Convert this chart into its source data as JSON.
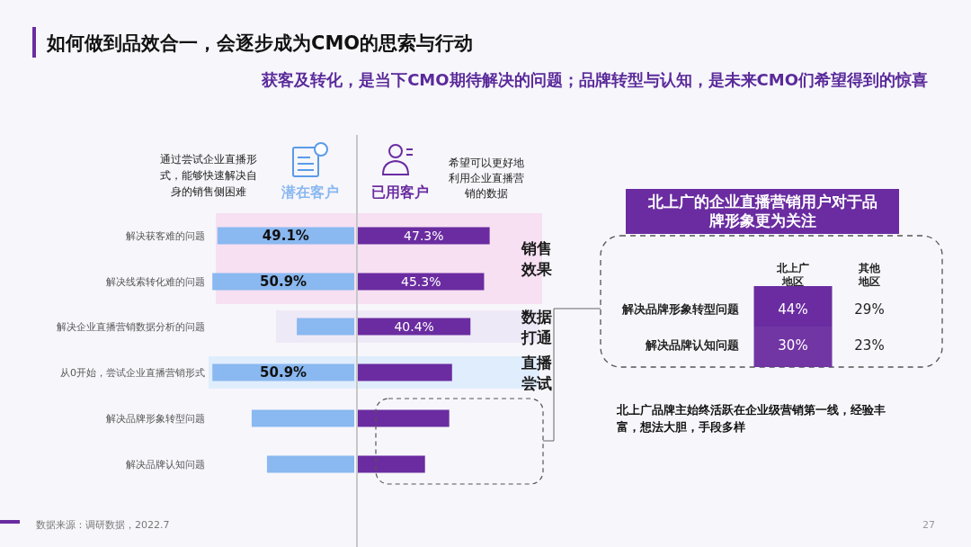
{
  "chart_data": [
    {
      "type": "bar",
      "orientation": "horizontal",
      "title": "如何做到品效合一，会逐步成为CMO的思索与行动",
      "subtitle": "获客及转化，是当下CMO期待解决的问题；品牌转型与认知，是未来CMO们希望得到的惊喜",
      "categories": [
        "解决获客难的问题",
        "解决线索转化难的问题",
        "解决企业直播营销数据分析的问题",
        "从0开始，尝试企业直播营销形式",
        "解决品牌形象转型问题",
        "解决品牌认知问题"
      ],
      "tick_labels": "y",
      "series": [
        {
          "name": "潜在客户",
          "color": "#8ab8f0",
          "values": [
            49.1,
            50.9,
            20.6,
            50.9,
            36.8,
            31.3
          ],
          "value_labels": [
            "49.1%",
            "50.9%",
            null,
            "50.9%",
            null,
            null
          ]
        }
      ],
      "bands": [
        {
          "axis": "y",
          "from": "解决获客难的问题",
          "to": "解决线索转化难的问题",
          "label": "销售效果",
          "color": "#f6dcf0"
        },
        {
          "axis": "y",
          "from": "解决企业直播营销数据分析的问题",
          "to": "解决企业直播营销数据分析的问题",
          "label": "数据打通",
          "color": "#ece6f6"
        },
        {
          "axis": "y",
          "from": "从0开始，尝试企业直播营销形式",
          "to": "从0开始，尝试企业直播营销形式",
          "label": "直播尝试",
          "color": "#dcebfb"
        }
      ],
      "annotations": [
        "通过尝试企业直播形式，能够快速解决自身的销售侧困难",
        "数据来源：调研数据，2022.7",
        "27"
      ]
    },
    {
      "type": "bar",
      "orientation": "horizontal",
      "categories": [
        null,
        null,
        null,
        null,
        null,
        null
      ],
      "tick_labels": false,
      "series": [
        {
          "name": "已用客户",
          "color": "#6a2ca0",
          "values": [
            47.3,
            45.3,
            40.4,
            33.8,
            32.8,
            24.1
          ],
          "value_labels": [
            "47.3%",
            "45.3%",
            "40.4%",
            null,
            null,
            null
          ]
        }
      ],
      "annotations": [
        "希望可以更好地利用企业直播营销的数据"
      ]
    },
    {
      "type": "heatmap",
      "title": "北上广的企业直播营销用户对于品牌形象更为关注",
      "categories": [
        "北上广地区",
        "其他地区"
      ],
      "y_categories": [
        "解决品牌形象转型问题",
        "解决品牌认知问题"
      ],
      "cells": [
        [
          44,
          29
        ],
        [
          30,
          23
        ]
      ],
      "cell_labels": [
        [
          "44%",
          "29%"
        ],
        [
          "30%",
          "23%"
        ]
      ],
      "colors": [
        "#6a2ca0",
        null
      ],
      "annotations": [
        "北上广品牌主始终活跃在企业级营销第一线，经验丰富，想法大胆，手段多样"
      ]
    }
  ]
}
